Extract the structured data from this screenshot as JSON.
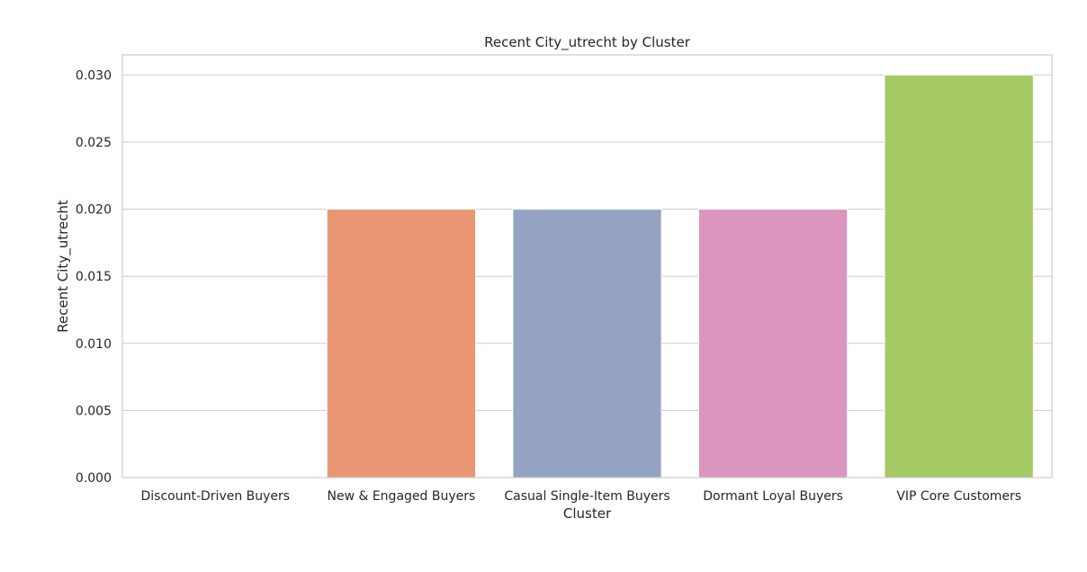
{
  "chart_data": {
    "type": "bar",
    "title": "Recent City_utrecht by Cluster",
    "xlabel": "Cluster",
    "ylabel": "Recent City_utrecht",
    "categories": [
      "Discount-Driven Buyers",
      "New & Engaged Buyers",
      "Casual Single-Item Buyers",
      "Dormant Loyal Buyers",
      "VIP Core Customers"
    ],
    "values": [
      0.0,
      0.02,
      0.02,
      0.02,
      0.03
    ],
    "colors": [
      "#66c2a5",
      "#e99675",
      "#95a3c3",
      "#db96c0",
      "#a4c965"
    ],
    "ylim": [
      0,
      0.0315
    ],
    "yticks": [
      "0.000",
      "0.005",
      "0.010",
      "0.015",
      "0.020",
      "0.025",
      "0.030"
    ],
    "grid": true,
    "legend": "none"
  }
}
